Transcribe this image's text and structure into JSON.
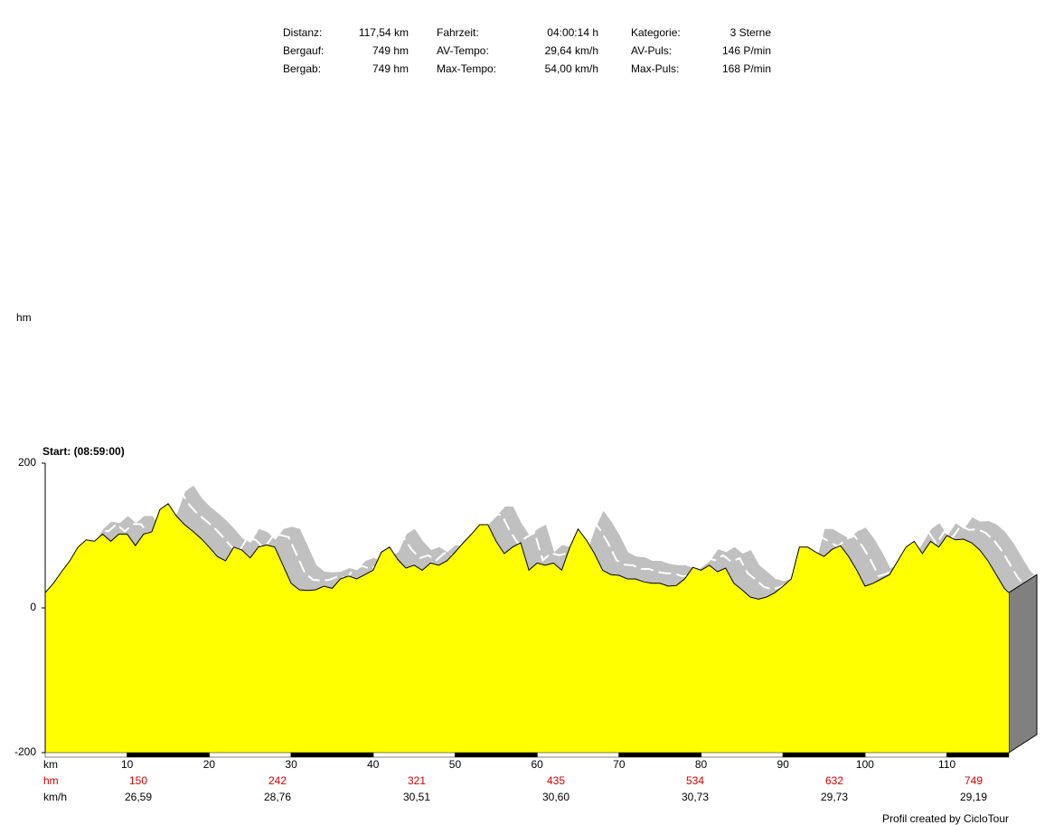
{
  "stats": [
    [
      {
        "label": "Distanz:",
        "value": "117,54 km"
      },
      {
        "label": "Fahrzeit:",
        "value": "04:00:14 h"
      },
      {
        "label": "Kategorie:",
        "value": "3 Sterne"
      }
    ],
    [
      {
        "label": "Bergauf:",
        "value": "749 hm"
      },
      {
        "label": "AV-Tempo:",
        "value": "29,64 km/h"
      },
      {
        "label": "AV-Puls:",
        "value": "146 P/min"
      }
    ],
    [
      {
        "label": "Bergab:",
        "value": "749 hm"
      },
      {
        "label": "Max-Tempo:",
        "value": "54,00 km/h"
      },
      {
        "label": "Max-Puls:",
        "value": "168 P/min"
      }
    ]
  ],
  "chart_data": {
    "type": "area",
    "y_label": "hm",
    "x_label": "km",
    "start_label": "Start: (08:59:00)",
    "color": "#ffff00",
    "line_color": "#000000",
    "shadow_color": "#c0c0c0",
    "xlim": [
      0,
      117.54
    ],
    "ylim": [
      -200,
      200
    ],
    "yticks": [
      -200,
      0,
      200
    ],
    "xticks": [
      10,
      20,
      30,
      40,
      50,
      60,
      70,
      80,
      90,
      100,
      110
    ],
    "x": [
      0,
      1,
      2,
      3,
      4,
      5,
      6,
      7,
      8,
      9,
      10,
      11,
      12,
      13,
      14,
      15,
      16,
      17,
      18,
      19,
      20,
      21,
      22,
      23,
      24,
      25,
      26,
      27,
      28,
      29,
      30,
      31,
      32,
      33,
      34,
      35,
      36,
      37,
      38,
      39,
      40,
      41,
      42,
      43,
      44,
      45,
      46,
      47,
      48,
      49,
      50,
      51,
      52,
      53,
      54,
      55,
      56,
      57,
      58,
      59,
      60,
      61,
      62,
      63,
      64,
      65,
      66,
      67,
      68,
      69,
      70,
      71,
      72,
      73,
      74,
      75,
      76,
      77,
      78,
      79,
      80,
      81,
      82,
      83,
      84,
      85,
      86,
      87,
      88,
      89,
      90,
      91,
      92,
      93,
      94,
      95,
      96,
      97,
      98,
      99,
      100,
      101,
      102,
      103,
      104,
      105,
      106,
      107,
      108,
      109,
      110,
      111,
      112,
      113,
      114,
      115,
      116,
      117,
      117.54
    ],
    "values": [
      21,
      34,
      50,
      65,
      84,
      94,
      92,
      102,
      92,
      102,
      102,
      86,
      102,
      105,
      136,
      144,
      127,
      115,
      106,
      96,
      84,
      71,
      65,
      84,
      80,
      69,
      84,
      87,
      84,
      59,
      34,
      25,
      24,
      25,
      30,
      27,
      40,
      44,
      40,
      46,
      52,
      77,
      84,
      67,
      55,
      59,
      52,
      62,
      59,
      65,
      77,
      90,
      102,
      115,
      115,
      92,
      75,
      84,
      90,
      52,
      62,
      59,
      62,
      52,
      84,
      109,
      94,
      75,
      52,
      46,
      45,
      40,
      40,
      36,
      34,
      34,
      30,
      31,
      40,
      56,
      52,
      59,
      50,
      55,
      34,
      25,
      15,
      12,
      15,
      21,
      30,
      40,
      84,
      84,
      77,
      71,
      81,
      86,
      71,
      52,
      30,
      34,
      40,
      46,
      65,
      84,
      92,
      75,
      92,
      84,
      100,
      94,
      95,
      90,
      80,
      65,
      46,
      27,
      21
    ]
  },
  "segments": {
    "hm_label": "hm",
    "speed_label": "km/h",
    "hm": [
      150,
      242,
      321,
      435,
      534,
      632,
      749
    ],
    "speed": [
      "26,59",
      "28,76",
      "30,51",
      "30,60",
      "30,73",
      "29,73",
      "29,19"
    ]
  },
  "footer": "Profil created by CicloTour"
}
